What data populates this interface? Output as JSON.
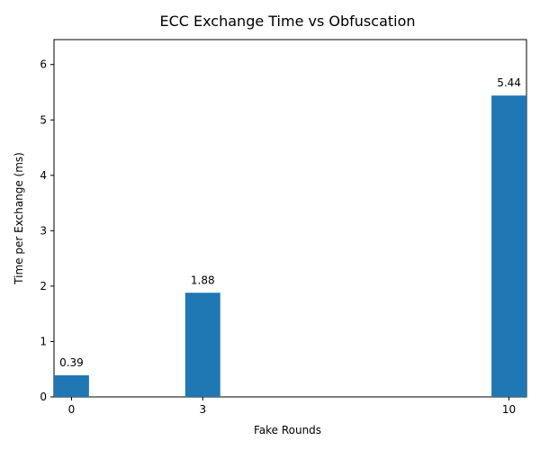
{
  "chart_data": {
    "type": "bar",
    "title": "ECC Exchange Time vs Obfuscation",
    "xlabel": "Fake Rounds",
    "ylabel": "Time per Exchange (ms)",
    "x": [
      0,
      3,
      10
    ],
    "values": [
      0.39,
      1.88,
      5.44
    ],
    "data_labels": [
      "0.39",
      "1.88",
      "5.44"
    ],
    "xticks": [
      "0",
      "3",
      "10"
    ],
    "yticks": [
      0,
      1,
      2,
      3,
      4,
      5,
      6
    ],
    "xlim": [
      -0.4,
      10.4
    ],
    "ylim": [
      0,
      6.45
    ],
    "bar_width": 0.8,
    "bar_color": "#1f77b4",
    "grid": false,
    "legend": false
  }
}
